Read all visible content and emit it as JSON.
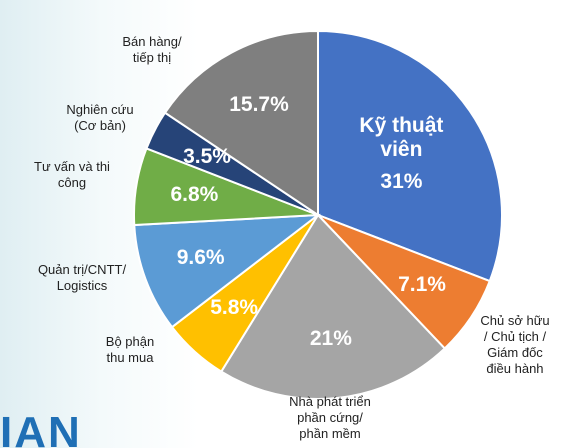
{
  "chart_data": {
    "type": "pie",
    "categories": [
      "Kỹ thuật\nviên",
      "Chủ sở hữu\n/ Chủ tịch /\nGiám đốc\nđiều hành",
      "Nhà phát triển\nphần cứng/\nphần mềm",
      "Bộ phận\nthu mua",
      "Quản trị/CNTT/\nLogistics",
      "Tư vấn và thi\ncông",
      "Nghiên cứu\n(Cơ bản)",
      "Bán hàng/\ntiếp thị"
    ],
    "values": [
      31,
      7.1,
      21,
      5.8,
      9.6,
      6.8,
      3.5,
      15.7
    ],
    "value_labels": [
      "31%",
      "7.1%",
      "21%",
      "5.8%",
      "9.6%",
      "6.8%",
      "3.5%",
      "15.7%"
    ],
    "colors": [
      "#4472c4",
      "#ed7d31",
      "#a5a5a5",
      "#ffc000",
      "#5b9bd5",
      "#70ad47",
      "#264478",
      "#7f7f7f"
    ],
    "watermark": "IAN"
  }
}
